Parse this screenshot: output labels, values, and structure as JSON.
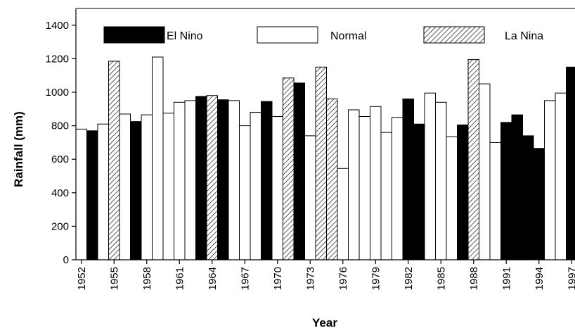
{
  "chart_data": {
    "type": "bar",
    "xlabel": "Year",
    "ylabel": "Rainfall (mm)",
    "ylim": [
      0,
      1500
    ],
    "yticks": [
      0,
      200,
      400,
      600,
      800,
      1000,
      1200,
      1400
    ],
    "grid": false,
    "legend_position": "top",
    "legend": [
      {
        "key": "el_nino",
        "label": "El Nino"
      },
      {
        "key": "normal",
        "label": "Normal"
      },
      {
        "key": "la_nina",
        "label": "La Nina"
      }
    ],
    "series_styles": {
      "el_nino": {
        "fill": "#000000"
      },
      "normal": {
        "fill": "#ffffff"
      },
      "la_nina": {
        "fill": "hatched"
      }
    },
    "xtick_labels": [
      "1952",
      "1955",
      "1958",
      "1961",
      "1964",
      "1967",
      "1970",
      "1973",
      "1976",
      "1979",
      "1982",
      "1985",
      "1988",
      "1991",
      "1994",
      "1997"
    ],
    "years": [
      1952,
      1953,
      1954,
      1955,
      1956,
      1957,
      1958,
      1959,
      1960,
      1961,
      1962,
      1963,
      1964,
      1965,
      1966,
      1967,
      1968,
      1969,
      1970,
      1971,
      1972,
      1973,
      1974,
      1975,
      1976,
      1977,
      1978,
      1979,
      1980,
      1981,
      1982,
      1983,
      1984,
      1985,
      1986,
      1987,
      1988,
      1989,
      1990,
      1991,
      1992,
      1993,
      1994,
      1995,
      1996,
      1997
    ],
    "values": [
      780,
      770,
      810,
      1185,
      870,
      825,
      865,
      1210,
      875,
      940,
      950,
      975,
      980,
      955,
      950,
      800,
      880,
      945,
      855,
      1085,
      1055,
      740,
      1150,
      960,
      545,
      895,
      855,
      915,
      760,
      850,
      960,
      810,
      995,
      940,
      735,
      805,
      1195,
      1050,
      700,
      820,
      865,
      740,
      665,
      950,
      995,
      1150
    ],
    "categories": [
      "normal",
      "el_nino",
      "normal",
      "la_nina",
      "normal",
      "el_nino",
      "normal",
      "normal",
      "normal",
      "normal",
      "normal",
      "el_nino",
      "la_nina",
      "el_nino",
      "normal",
      "normal",
      "normal",
      "el_nino",
      "normal",
      "la_nina",
      "el_nino",
      "normal",
      "la_nina",
      "la_nina",
      "normal",
      "normal",
      "normal",
      "normal",
      "normal",
      "normal",
      "el_nino",
      "el_nino",
      "normal",
      "normal",
      "normal",
      "el_nino",
      "la_nina",
      "normal",
      "normal",
      "el_nino",
      "el_nino",
      "el_nino",
      "el_nino",
      "normal",
      "normal",
      "el_nino"
    ]
  }
}
